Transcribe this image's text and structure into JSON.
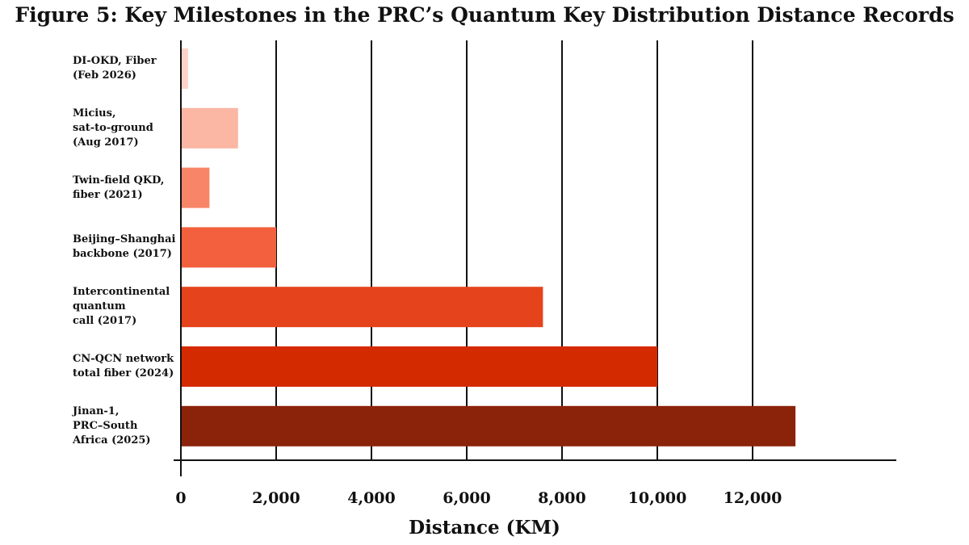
{
  "chart_data": {
    "type": "bar",
    "orientation": "horizontal",
    "title": "Figure 5: Key Milestones in the PRC’s Quantum Key Distribution Distance Records",
    "xlabel": "Distance (KM)",
    "ylabel": "",
    "xlim": [
      0,
      15000
    ],
    "x_ticks": [
      0,
      2000,
      4000,
      6000,
      8000,
      10000,
      12000
    ],
    "x_tick_labels": [
      "0",
      "2,000",
      "4,000",
      "6,000",
      "8,000",
      "10,000",
      "12,000"
    ],
    "grid": "vertical",
    "legend": "none",
    "categories": [
      "DI-OKD, Fiber\n(Feb 2026)",
      "Micius,\nsat-to-ground\n(Aug 2017)",
      "Twin-field QKD,\nfiber (2021)",
      "Beijing–Shanghai\nbackbone (2017)",
      "Intercontinental\nquantum\ncall (2017)",
      "CN-QCN network\ntotal fiber (2024)",
      "Jinan-1,\nPRC–South\nAfrica (2025)"
    ],
    "values": [
      150,
      1200,
      600,
      2000,
      7600,
      10000,
      12900
    ],
    "colors": [
      "#fdd2c7",
      "#fbb6a4",
      "#f98568",
      "#f2603e",
      "#e5431c",
      "#d42a00",
      "#8b230b"
    ]
  }
}
